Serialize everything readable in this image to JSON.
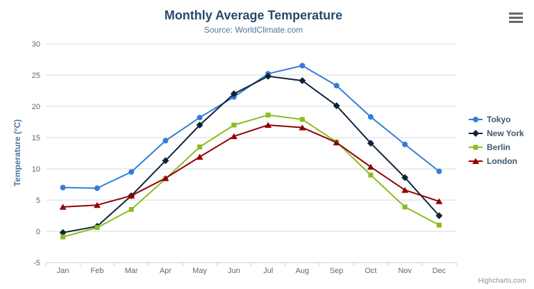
{
  "chart": {
    "title": "Monthly Average Temperature",
    "subtitle": "Source: WorldClimate.com",
    "credits": "Highcharts.com",
    "menu_icon": "hamburger-menu",
    "colors": {
      "title_text": "#274b6d",
      "subtitle_text": "#4d759e",
      "axis_title_text": "#4d759e",
      "axis_label_text": "#666666",
      "gridline": "#d8d8d8",
      "axis_line": "#c0d0e0",
      "legend_text": "#3e576f",
      "credits_text": "#909090",
      "menu_icon_color": "#666666"
    }
  },
  "chart_data": {
    "type": "line",
    "title": "Monthly Average Temperature",
    "subtitle": "Source: WorldClimate.com",
    "xlabel": "",
    "ylabel": "Temperature (°C)",
    "ylim": [
      -5,
      30
    ],
    "ytick_step": 5,
    "yticks": [
      -5,
      0,
      5,
      10,
      15,
      20,
      25,
      30
    ],
    "grid": true,
    "legend_position": "right",
    "categories": [
      "Jan",
      "Feb",
      "Mar",
      "Apr",
      "May",
      "Jun",
      "Jul",
      "Aug",
      "Sep",
      "Oct",
      "Nov",
      "Dec"
    ],
    "series": [
      {
        "name": "Tokyo",
        "color": "#2f7ed8",
        "marker": "circle",
        "values": [
          7.0,
          6.9,
          9.5,
          14.5,
          18.2,
          21.5,
          25.2,
          26.5,
          23.3,
          18.3,
          13.9,
          9.6
        ]
      },
      {
        "name": "New York",
        "color": "#0d233a",
        "marker": "diamond",
        "values": [
          -0.2,
          0.8,
          5.7,
          11.3,
          17.0,
          22.0,
          24.8,
          24.1,
          20.1,
          14.1,
          8.6,
          2.5
        ]
      },
      {
        "name": "Berlin",
        "color": "#8bbc21",
        "marker": "square",
        "values": [
          -0.9,
          0.6,
          3.5,
          8.4,
          13.5,
          17.0,
          18.6,
          17.9,
          14.3,
          9.0,
          3.9,
          1.0
        ]
      },
      {
        "name": "London",
        "color": "#910000",
        "marker": "triangle",
        "values": [
          3.9,
          4.2,
          5.7,
          8.5,
          11.9,
          15.2,
          17.0,
          16.6,
          14.2,
          10.3,
          6.6,
          4.8
        ]
      }
    ]
  }
}
